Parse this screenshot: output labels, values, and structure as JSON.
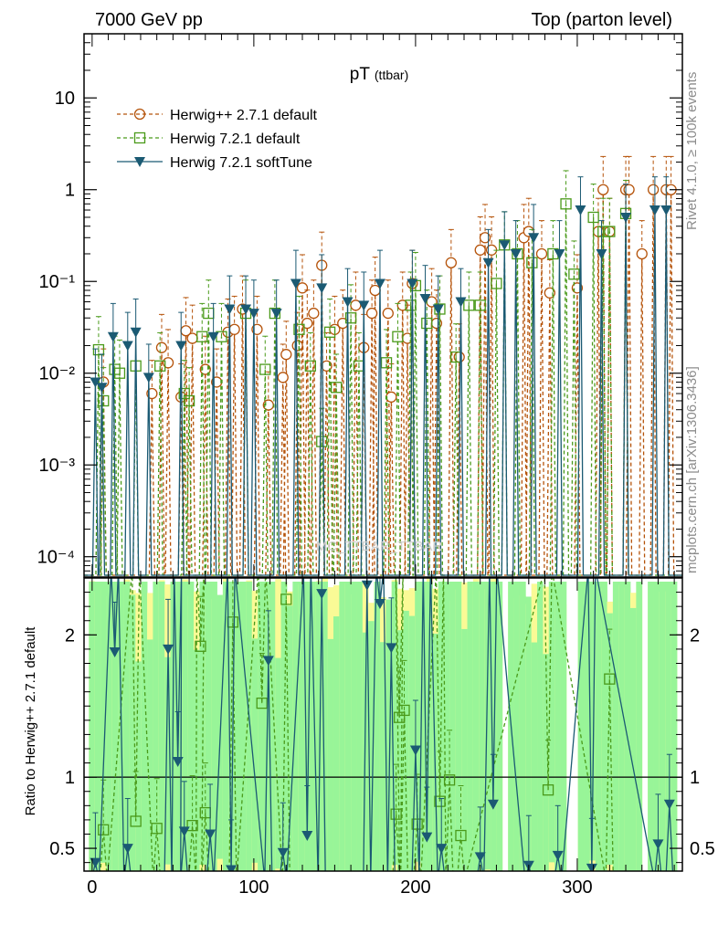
{
  "header": {
    "left": "7000 GeV pp",
    "right": "Top (parton level)"
  },
  "side_labels": {
    "rivet": "Rivet 4.1.0, ≥ 100k events",
    "mcplots": "mcplots.cern.ch [arXiv:1306.3436]"
  },
  "watermark": "MC_TTBAR_TTBAR",
  "colors": {
    "herwigpp": "#b5530a",
    "herwig721": "#4a9a1a",
    "softtune": "#1b5a73",
    "band_green": "#98f598",
    "band_yellow": "#fafa96"
  },
  "chart_data": [
    {
      "type": "scatter",
      "title": "pT",
      "title_sub": "(ttbar)",
      "xlabel": "",
      "ylabel": "",
      "yscale": "log",
      "ylim": [
        6e-05,
        50
      ],
      "xlim": [
        -5,
        365
      ],
      "y_tick_labels": [
        "10",
        "1",
        "10⁻¹",
        "10⁻²",
        "10⁻³",
        "10⁻⁴"
      ],
      "legend": [
        "Herwig++ 2.7.1 default",
        "Herwig 7.2.1 default",
        "Herwig 7.2.1 softTune"
      ],
      "series": [
        {
          "name": "Herwig++ 2.7.1 default",
          "points": [
            [
              7,
              0.008
            ],
            [
              37,
              0.006
            ],
            [
              43,
              0.019
            ],
            [
              47,
              0.013
            ],
            [
              55,
              0.0055
            ],
            [
              58,
              0.029
            ],
            [
              62,
              0.024
            ],
            [
              70,
              0.011
            ],
            [
              77,
              0.008
            ],
            [
              84,
              0.028
            ],
            [
              88,
              0.03
            ],
            [
              93,
              0.05
            ],
            [
              102,
              0.03
            ],
            [
              109,
              0.0045
            ],
            [
              118,
              0.009
            ],
            [
              120,
              0.016
            ],
            [
              127,
              0.02
            ],
            [
              130,
              0.085
            ],
            [
              133,
              0.035
            ],
            [
              137,
              0.045
            ],
            [
              142,
              0.15
            ],
            [
              145,
              0.012
            ],
            [
              150,
              0.03
            ],
            [
              155,
              0.035
            ],
            [
              163,
              0.055
            ],
            [
              168,
              0.019
            ],
            [
              173,
              0.045
            ],
            [
              175,
              0.08
            ],
            [
              183,
              0.045
            ],
            [
              185,
              0.0055
            ],
            [
              192,
              0.055
            ],
            [
              195,
              0.024
            ],
            [
              198,
              0.095
            ],
            [
              210,
              0.06
            ],
            [
              213,
              0.035
            ],
            [
              222,
              0.16
            ],
            [
              227,
              0.015
            ],
            [
              240,
              0.22
            ],
            [
              243,
              0.3
            ],
            [
              247,
              0.22
            ],
            [
              267,
              0.3
            ],
            [
              270,
              0.35
            ],
            [
              278,
              0.2
            ],
            [
              283,
              0.075
            ],
            [
              300,
              0.085
            ],
            [
              313,
              0.35
            ],
            [
              316,
              1
            ],
            [
              320,
              0.35
            ],
            [
              330,
              1
            ],
            [
              332,
              1
            ],
            [
              340,
              0.2
            ],
            [
              347,
              1
            ],
            [
              355,
              1
            ],
            [
              358,
              1
            ]
          ]
        },
        {
          "name": "Herwig 7.2.1 default",
          "points": [
            [
              4,
              0.018
            ],
            [
              7,
              0.005
            ],
            [
              14,
              0.011
            ],
            [
              17,
              0.01
            ],
            [
              27,
              0.012
            ],
            [
              42,
              0.012
            ],
            [
              57,
              0.006
            ],
            [
              60,
              0.005
            ],
            [
              68,
              0.025
            ],
            [
              72,
              0.045
            ],
            [
              80,
              0.025
            ],
            [
              95,
              0.045
            ],
            [
              107,
              0.011
            ],
            [
              113,
              0.045
            ],
            [
              128,
              0.03
            ],
            [
              135,
              0.012
            ],
            [
              142,
              0.0018
            ],
            [
              147,
              0.028
            ],
            [
              151,
              0.007
            ],
            [
              160,
              0.04
            ],
            [
              165,
              0.012
            ],
            [
              182,
              0.013
            ],
            [
              189,
              0.025
            ],
            [
              197,
              0.055
            ],
            [
              200,
              0.09
            ],
            [
              207,
              0.035
            ],
            [
              215,
              0.05
            ],
            [
              225,
              0.015
            ],
            [
              233,
              0.055
            ],
            [
              240,
              0.055
            ],
            [
              250,
              0.095
            ],
            [
              255,
              0.25
            ],
            [
              263,
              0.2
            ],
            [
              272,
              0.16
            ],
            [
              285,
              0.2
            ],
            [
              293,
              0.7
            ],
            [
              298,
              0.12
            ],
            [
              310,
              0.5
            ],
            [
              316,
              0.35
            ],
            [
              320,
              0.35
            ],
            [
              330,
              0.55
            ]
          ]
        },
        {
          "name": "Herwig 7.2.1 softTune",
          "points": [
            [
              2,
              0.008
            ],
            [
              6,
              0.007
            ],
            [
              13,
              0.025
            ],
            [
              22,
              0.02
            ],
            [
              27,
              0.028
            ],
            [
              35,
              0.009
            ],
            [
              55,
              0.02
            ],
            [
              75,
              0.025
            ],
            [
              85,
              0.05
            ],
            [
              95,
              0.05
            ],
            [
              100,
              0.045
            ],
            [
              114,
              0.045
            ],
            [
              126,
              0.095
            ],
            [
              142,
              0.085
            ],
            [
              158,
              0.06
            ],
            [
              168,
              0.055
            ],
            [
              178,
              0.095
            ],
            [
              198,
              0.095
            ],
            [
              206,
              0.065
            ],
            [
              214,
              0.05
            ],
            [
              228,
              0.06
            ],
            [
              245,
              0.16
            ],
            [
              255,
              0.25
            ],
            [
              262,
              0.2
            ],
            [
              273,
              0.3
            ],
            [
              289,
              0.2
            ],
            [
              302,
              0.6
            ],
            [
              315,
              0.2
            ],
            [
              330,
              0.5
            ],
            [
              348,
              0.6
            ],
            [
              355,
              0.6
            ]
          ]
        }
      ]
    },
    {
      "type": "scatter",
      "ylabel": "Ratio to Herwig++ 2.7.1 default",
      "xlim": [
        -5,
        365
      ],
      "ylim": [
        0.34,
        2.4
      ],
      "x_ticks": [
        0,
        100,
        200,
        300
      ],
      "y_ticks": [
        0.5,
        1,
        2
      ],
      "reference_line": 1,
      "series": [
        {
          "name": "Herwig 7.2.1 default",
          "points": [
            [
              7,
              0.63
            ],
            [
              27,
              0.69
            ],
            [
              40,
              0.64
            ],
            [
              62,
              0.66
            ],
            [
              67,
              1.92
            ],
            [
              70,
              0.75
            ],
            [
              87,
              2.09
            ],
            [
              105,
              1.52
            ],
            [
              120,
              2.25
            ],
            [
              188,
              0.74
            ],
            [
              190,
              1.42
            ],
            [
              193,
              1.47
            ],
            [
              201,
              0.67
            ],
            [
              215,
              0.83
            ],
            [
              221,
              0.98
            ],
            [
              228,
              0.59
            ],
            [
              282,
              0.91
            ],
            [
              320,
              1.69
            ]
          ]
        },
        {
          "name": "Herwig 7.2.1 softTune",
          "points": [
            [
              2,
              0.4
            ],
            [
              14,
              1.88
            ],
            [
              22,
              0.5
            ],
            [
              47,
              1.9
            ],
            [
              53,
              1.11
            ],
            [
              57,
              0.62
            ],
            [
              73,
              0.6
            ],
            [
              86,
              0.35
            ],
            [
              109,
              1.82
            ],
            [
              118,
              0.47
            ],
            [
              133,
              0.59
            ],
            [
              142,
              2.29
            ],
            [
              170,
              2.35
            ],
            [
              178,
              2.22
            ],
            [
              185,
              1.91
            ],
            [
              200,
              1.19
            ],
            [
              207,
              0.58
            ],
            [
              216,
              0.5
            ],
            [
              240,
              0.44
            ],
            [
              248,
              0.81
            ],
            [
              270,
              0.38
            ],
            [
              288,
              0.45
            ],
            [
              309,
              0.36
            ],
            [
              350,
              0.53
            ],
            [
              357,
              0.81
            ]
          ]
        }
      ]
    }
  ]
}
